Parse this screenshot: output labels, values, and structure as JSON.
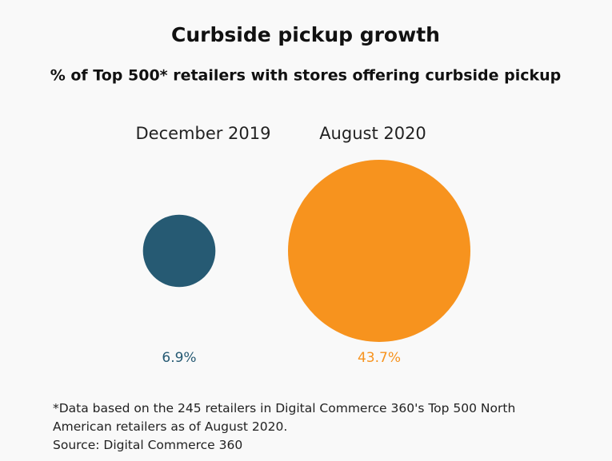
{
  "chart_data": {
    "type": "bubble",
    "title": "Curbside pickup growth",
    "subtitle": "% of Top 500* retailers with stores offering curbside pickup",
    "categories": [
      "December 2019",
      "August 2020"
    ],
    "values": [
      6.9,
      43.7
    ],
    "value_labels": [
      "6.9%",
      "43.7%"
    ],
    "colors": [
      "#265a73",
      "#f7931e"
    ],
    "note": "*Data based on the 245 retailers in Digital Commerce 360's Top 500 North American retailers as of August 2020.",
    "source": "Source: Digital Commerce 360"
  }
}
